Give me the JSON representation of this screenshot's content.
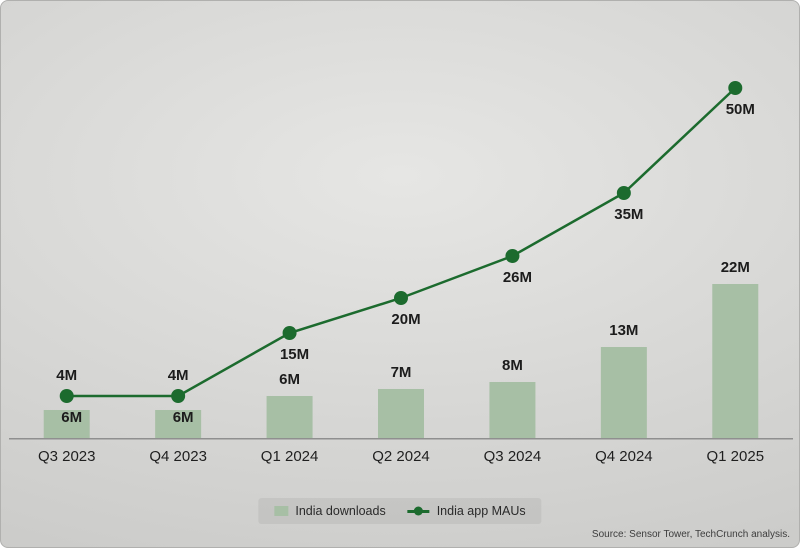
{
  "chart_data": {
    "type": "bar+line",
    "title": "",
    "xlabel": "",
    "ylabel": "",
    "unit": "M",
    "ylim": [
      0,
      55
    ],
    "grid": false,
    "legend_position": "bottom-center",
    "categories": [
      "Q3 2023",
      "Q4 2023",
      "Q1 2024",
      "Q2 2024",
      "Q3 2024",
      "Q4 2024",
      "Q1 2025"
    ],
    "series": [
      {
        "name": "India downloads",
        "kind": "bar",
        "color": "#a7bfa5",
        "values": [
          4,
          4,
          6,
          7,
          8,
          13,
          22
        ],
        "labels": [
          "4M",
          "4M",
          "6M",
          "7M",
          "8M",
          "13M",
          "22M"
        ]
      },
      {
        "name": "India app MAUs",
        "kind": "line",
        "color": "#1c6b2e",
        "values": [
          6,
          6,
          15,
          20,
          26,
          35,
          50
        ],
        "labels": [
          "6M",
          "6M",
          "15M",
          "20M",
          "26M",
          "35M",
          "50M"
        ]
      }
    ]
  },
  "colors": {
    "background_from": "#e6e6e4",
    "background_to": "#c7c7c5",
    "axis": "#8f8f8f",
    "bar": "#a7bfa5",
    "line": "#1c6b2e",
    "text": "#1c1c1c"
  },
  "source_note": "Source: Sensor Tower, TechCrunch analysis."
}
